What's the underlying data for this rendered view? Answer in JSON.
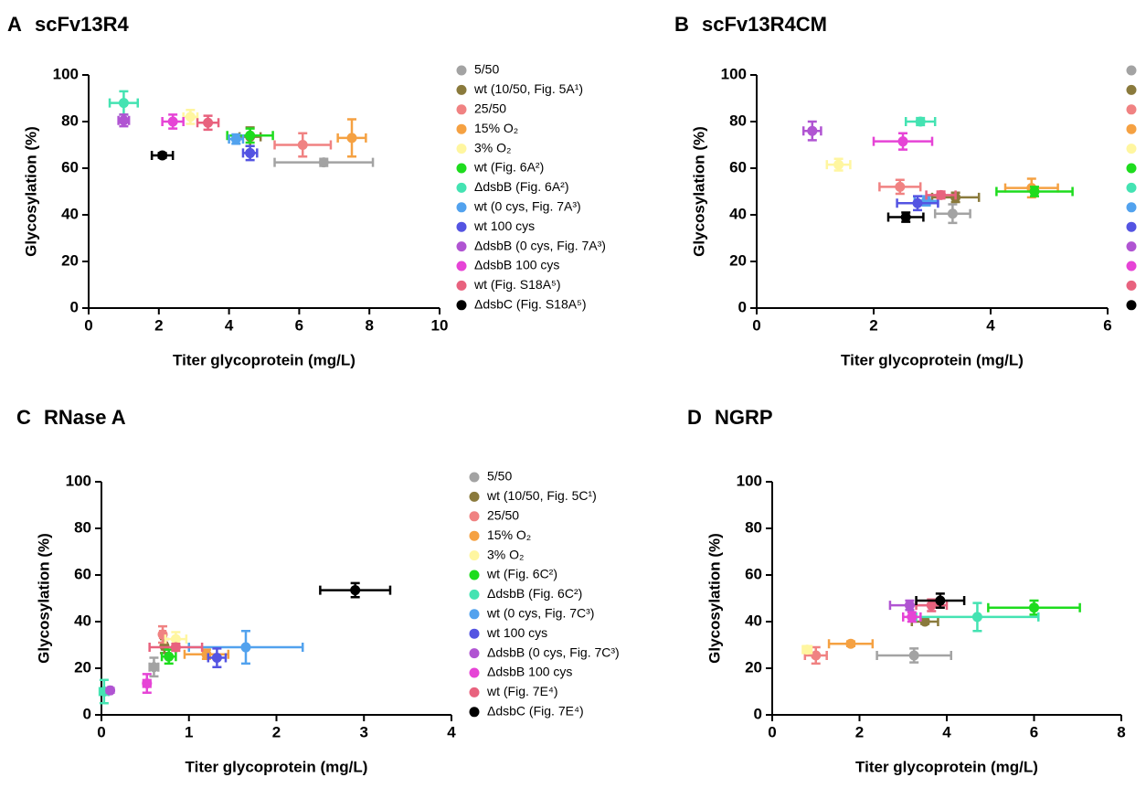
{
  "chart_data": [
    {
      "type": "scatter",
      "panel": "A",
      "title": "scFv13R4",
      "x_label": "Titer glycoprotein (mg/L)",
      "y_label": "Glycosylation (%)",
      "xlim": [
        0,
        10
      ],
      "ylim": [
        0,
        100
      ],
      "xticks": [
        0,
        2,
        4,
        6,
        8,
        10
      ],
      "yticks": [
        0,
        20,
        40,
        60,
        80,
        100
      ],
      "legend": "right",
      "series": [
        {
          "name": "5/50",
          "color": "#a3a3a3",
          "x": [
            6.7
          ],
          "y": [
            62.5
          ],
          "xerr": [
            1.4
          ],
          "yerr": [
            1.5
          ]
        },
        {
          "name": "wt (10/50, Fig. 5A¹)",
          "color": "#8a7a3c",
          "x": [
            4.6
          ],
          "y": [
            73.5
          ],
          "xerr": [
            0.3
          ],
          "yerr": [
            4
          ]
        },
        {
          "name": "25/50",
          "color": "#f08282",
          "x": [
            6.1
          ],
          "y": [
            70
          ],
          "xerr": [
            0.8
          ],
          "yerr": [
            5
          ]
        },
        {
          "name": "15%  O₂",
          "color": "#f5a142",
          "x": [
            7.5
          ],
          "y": [
            73
          ],
          "xerr": [
            0.4
          ],
          "yerr": [
            8
          ]
        },
        {
          "name": "3%  O₂",
          "color": "#fff6a0",
          "x": [
            2.9
          ],
          "y": [
            82
          ],
          "xerr": [
            0.2
          ],
          "yerr": [
            3
          ]
        },
        {
          "name": "wt (Fig. 6A²)",
          "color": "#1edc1e",
          "x": [
            4.6
          ],
          "y": [
            74
          ],
          "xerr": [
            0.65
          ],
          "yerr": [
            3
          ]
        },
        {
          "name": "ΔdsbB (Fig. 6A²)",
          "color": "#44e3b2",
          "x": [
            1.0
          ],
          "y": [
            88
          ],
          "xerr": [
            0.4
          ],
          "yerr": [
            5
          ]
        },
        {
          "name": "wt (0 cys, Fig. 7A³)",
          "color": "#52a2ee",
          "x": [
            4.2
          ],
          "y": [
            72.5
          ],
          "xerr": [
            0.2
          ],
          "yerr": [
            2
          ]
        },
        {
          "name": "wt 100 cys",
          "color": "#5454e2",
          "x": [
            4.6
          ],
          "y": [
            66.5
          ],
          "xerr": [
            0.2
          ],
          "yerr": [
            3
          ]
        },
        {
          "name": "ΔdsbB (0 cys, Fig. 7A³)",
          "color": "#b054d2",
          "x": [
            1.0
          ],
          "y": [
            80.5
          ],
          "xerr": [
            0.15
          ],
          "yerr": [
            2.5
          ]
        },
        {
          "name": "ΔdsbB 100 cys",
          "color": "#e644d6",
          "x": [
            2.4
          ],
          "y": [
            80
          ],
          "xerr": [
            0.3
          ],
          "yerr": [
            3
          ]
        },
        {
          "name": "wt (Fig. S18A⁵)",
          "color": "#e8627e",
          "x": [
            3.4
          ],
          "y": [
            79.5
          ],
          "xerr": [
            0.3
          ],
          "yerr": [
            3
          ]
        },
        {
          "name": "ΔdsbC (Fig. S18A⁵)",
          "color": "#000000",
          "x": [
            2.1
          ],
          "y": [
            65.5
          ],
          "xerr": [
            0.3
          ],
          "yerr": [
            1
          ]
        }
      ]
    },
    {
      "type": "scatter",
      "panel": "B",
      "title": "scFv13R4CM",
      "x_label": "Titer glycoprotein (mg/L)",
      "y_label": "Glycosylation (%)",
      "xlim": [
        0,
        6
      ],
      "ylim": [
        0,
        100
      ],
      "xticks": [
        0,
        2,
        4,
        6
      ],
      "yticks": [
        0,
        20,
        40,
        60,
        80,
        100
      ],
      "legend": "markers",
      "series": [
        {
          "color": "#a3a3a3",
          "x": [
            3.35
          ],
          "y": [
            40.5
          ],
          "xerr": [
            0.3
          ],
          "yerr": [
            4
          ]
        },
        {
          "color": "#8a7a3c",
          "x": [
            3.4
          ],
          "y": [
            47.5
          ],
          "xerr": [
            0.4
          ],
          "yerr": [
            2
          ]
        },
        {
          "color": "#f08282",
          "x": [
            2.45
          ],
          "y": [
            52
          ],
          "xerr": [
            0.35
          ],
          "yerr": [
            3
          ]
        },
        {
          "color": "#f5a142",
          "x": [
            4.7
          ],
          "y": [
            51.5
          ],
          "xerr": [
            0.45
          ],
          "yerr": [
            4
          ]
        },
        {
          "color": "#fff6a0",
          "x": [
            1.4
          ],
          "y": [
            61.5
          ],
          "xerr": [
            0.2
          ],
          "yerr": [
            2.5
          ]
        },
        {
          "color": "#1edc1e",
          "x": [
            4.75
          ],
          "y": [
            50
          ],
          "xerr": [
            0.65
          ],
          "yerr": [
            2
          ]
        },
        {
          "color": "#44e3b2",
          "x": [
            2.8
          ],
          "y": [
            80
          ],
          "xerr": [
            0.25
          ],
          "yerr": [
            1.5
          ]
        },
        {
          "color": "#52a2ee",
          "x": [
            2.9
          ],
          "y": [
            46
          ],
          "xerr": [
            0.2
          ],
          "yerr": [
            2
          ]
        },
        {
          "color": "#5454e2",
          "x": [
            2.75
          ],
          "y": [
            45
          ],
          "xerr": [
            0.35
          ],
          "yerr": [
            3
          ]
        },
        {
          "color": "#b054d2",
          "x": [
            0.95
          ],
          "y": [
            76
          ],
          "xerr": [
            0.15
          ],
          "yerr": [
            4
          ]
        },
        {
          "color": "#e644d6",
          "x": [
            2.5
          ],
          "y": [
            71.5
          ],
          "xerr": [
            0.5
          ],
          "yerr": [
            3.5
          ]
        },
        {
          "color": "#e8627e",
          "x": [
            3.15
          ],
          "y": [
            48.5
          ],
          "xerr": [
            0.25
          ],
          "yerr": [
            1.5
          ]
        },
        {
          "color": "#000000",
          "x": [
            2.55
          ],
          "y": [
            39
          ],
          "xerr": [
            0.3
          ],
          "yerr": [
            2
          ]
        }
      ]
    },
    {
      "type": "scatter",
      "panel": "C",
      "title": "RNase A",
      "x_label": "Titer glycoprotein (mg/L)",
      "y_label": "Glycosylation (%)",
      "xlim": [
        0,
        4
      ],
      "ylim": [
        0,
        100
      ],
      "xticks": [
        0,
        1,
        2,
        3,
        4
      ],
      "yticks": [
        0,
        20,
        40,
        60,
        80,
        100
      ],
      "legend": "right",
      "series": [
        {
          "name": "5/50",
          "color": "#a3a3a3",
          "x": [
            0.6
          ],
          "y": [
            20.5
          ],
          "xerr": [
            0.05
          ],
          "yerr": [
            4
          ]
        },
        {
          "name": "wt (10/50, Fig. 5C¹)",
          "color": "#8a7a3c",
          "x": [
            0.72
          ],
          "y": [
            29.5
          ],
          "xerr": [
            0.03
          ],
          "yerr": [
            3
          ]
        },
        {
          "name": "25/50",
          "color": "#f08282",
          "x": [
            0.7
          ],
          "y": [
            34.5
          ],
          "xerr": [
            0.03
          ],
          "yerr": [
            3.5
          ]
        },
        {
          "name": "15%  O₂",
          "color": "#f5a142",
          "x": [
            1.2
          ],
          "y": [
            26
          ],
          "xerr": [
            0.25
          ],
          "yerr": [
            2
          ]
        },
        {
          "name": "3%  O₂",
          "color": "#fff6a0",
          "x": [
            0.85
          ],
          "y": [
            32.5
          ],
          "xerr": [
            0.12
          ],
          "yerr": [
            3
          ]
        },
        {
          "name": "wt (Fig. 6C²)",
          "color": "#1edc1e",
          "x": [
            0.77
          ],
          "y": [
            25
          ],
          "xerr": [
            0.08
          ],
          "yerr": [
            3
          ]
        },
        {
          "name": "ΔdsbB (Fig. 6C²)",
          "color": "#44e3b2",
          "x": [
            0.03
          ],
          "y": [
            10
          ],
          "xerr": [
            0.05
          ],
          "yerr": [
            5
          ]
        },
        {
          "name": "wt (0 cys, Fig. 7C³)",
          "color": "#52a2ee",
          "x": [
            1.65
          ],
          "y": [
            29
          ],
          "xerr": [
            0.65
          ],
          "yerr": [
            7
          ]
        },
        {
          "name": "wt 100 cys",
          "color": "#5454e2",
          "x": [
            1.32
          ],
          "y": [
            24.5
          ],
          "xerr": [
            0.1
          ],
          "yerr": [
            4
          ]
        },
        {
          "name": "ΔdsbB (0 cys, Fig. 7C³)",
          "color": "#b054d2",
          "x": [
            0.1
          ],
          "y": [
            10.5
          ],
          "xerr": [
            0.02
          ],
          "yerr": [
            1
          ]
        },
        {
          "name": "ΔdsbB 100 cys",
          "color": "#e644d6",
          "x": [
            0.52
          ],
          "y": [
            13.5
          ],
          "xerr": [
            0.04
          ],
          "yerr": [
            4
          ]
        },
        {
          "name": "wt (Fig. 7E⁴)",
          "color": "#e8627e",
          "x": [
            0.85
          ],
          "y": [
            29
          ],
          "xerr": [
            0.3
          ],
          "yerr": [
            1.5
          ]
        },
        {
          "name": "ΔdsbC (Fig. 7E⁴)",
          "color": "#000000",
          "x": [
            2.9
          ],
          "y": [
            53.5
          ],
          "xerr": [
            0.4
          ],
          "yerr": [
            3
          ]
        }
      ]
    },
    {
      "type": "scatter",
      "panel": "D",
      "title": "NGRP",
      "x_label": "Titer glycoprotein (mg/L)",
      "y_label": "Glycosylation (%)",
      "xlim": [
        0,
        8
      ],
      "ylim": [
        0,
        100
      ],
      "xticks": [
        0,
        2,
        4,
        6,
        8
      ],
      "yticks": [
        0,
        20,
        40,
        60,
        80,
        100
      ],
      "legend": "none",
      "series": [
        {
          "color": "#a3a3a3",
          "x": [
            3.25
          ],
          "y": [
            25.5
          ],
          "xerr": [
            0.85
          ],
          "yerr": [
            3
          ]
        },
        {
          "color": "#8a7a3c",
          "x": [
            3.5
          ],
          "y": [
            40
          ],
          "xerr": [
            0.3
          ],
          "yerr": [
            1
          ]
        },
        {
          "color": "#f08282",
          "x": [
            1.0
          ],
          "y": [
            25.5
          ],
          "xerr": [
            0.25
          ],
          "yerr": [
            3.5
          ]
        },
        {
          "color": "#f5a142",
          "x": [
            1.8
          ],
          "y": [
            30.5
          ],
          "xerr": [
            0.5
          ],
          "yerr": [
            1
          ]
        },
        {
          "color": "#fff6a0",
          "x": [
            0.8
          ],
          "y": [
            28
          ],
          "xerr": [
            0.1
          ],
          "yerr": [
            1.5
          ]
        },
        {
          "color": "#1edc1e",
          "x": [
            6.0
          ],
          "y": [
            46
          ],
          "xerr": [
            1.05
          ],
          "yerr": [
            3
          ]
        },
        {
          "color": "#44e3b2",
          "x": [
            4.7
          ],
          "y": [
            42
          ],
          "xerr": [
            1.4
          ],
          "yerr": [
            6
          ]
        },
        {
          "color": "#b054d2",
          "x": [
            3.15
          ],
          "y": [
            47
          ],
          "xerr": [
            0.45
          ],
          "yerr": [
            2
          ]
        },
        {
          "color": "#e644d6",
          "x": [
            3.2
          ],
          "y": [
            42
          ],
          "xerr": [
            0.2
          ],
          "yerr": [
            2
          ]
        },
        {
          "color": "#e8627e",
          "x": [
            3.65
          ],
          "y": [
            47
          ],
          "xerr": [
            0.35
          ],
          "yerr": [
            2.5
          ]
        },
        {
          "color": "#000000",
          "x": [
            3.85
          ],
          "y": [
            49
          ],
          "xerr": [
            0.55
          ],
          "yerr": [
            3
          ]
        }
      ]
    }
  ]
}
